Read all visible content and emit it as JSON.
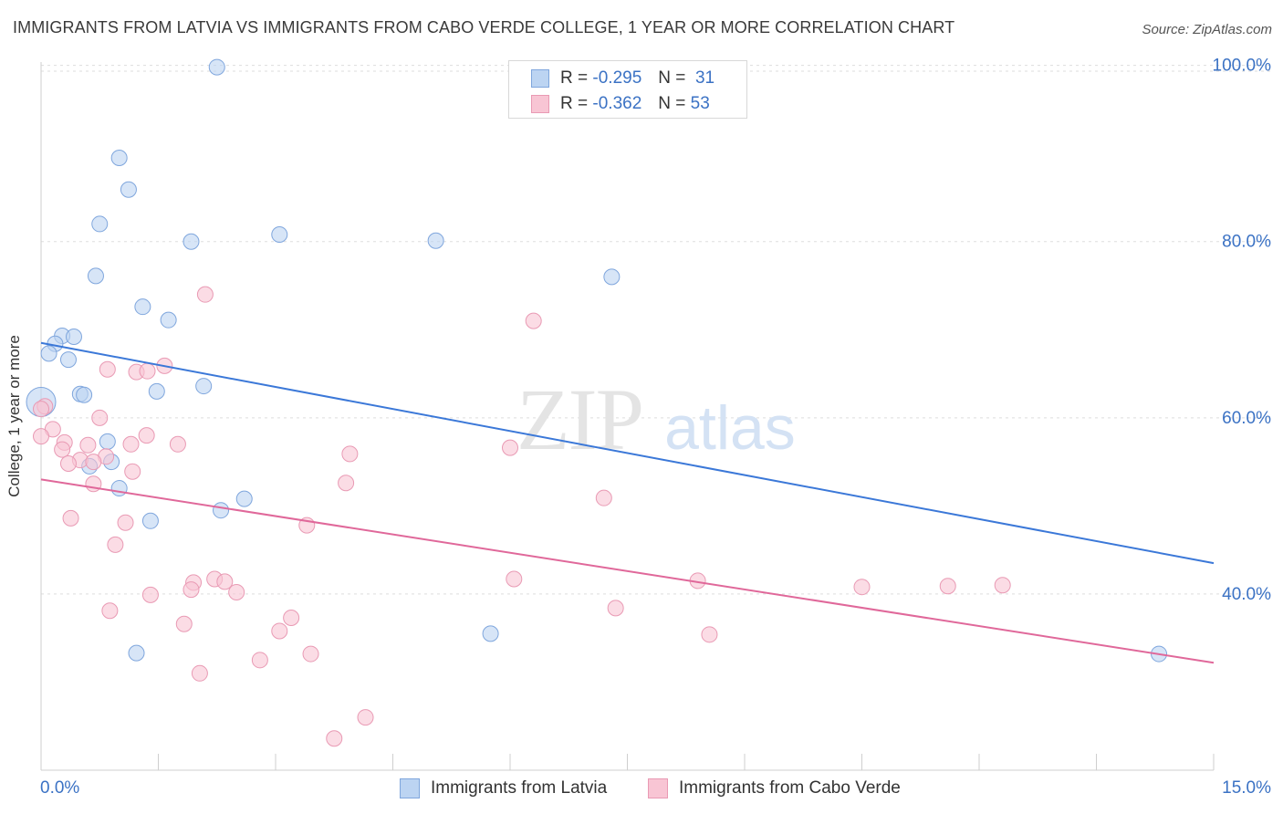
{
  "header": {
    "title": "IMMIGRANTS FROM LATVIA VS IMMIGRANTS FROM CABO VERDE COLLEGE, 1 YEAR OR MORE CORRELATION CHART",
    "source": "Source: ZipAtlas.com"
  },
  "legend_box": {
    "latvia": {
      "r_label": "R =",
      "r_value": "-0.295",
      "n_label": "N =",
      "n_value": "31"
    },
    "caboverde": {
      "r_label": "R =",
      "r_value": "-0.362",
      "n_label": "N =",
      "n_value": "53"
    }
  },
  "colors": {
    "latvia_fill": "#bcd4f2",
    "latvia_stroke": "#7fa6dd",
    "latvia_line": "#3b78d8",
    "caboverde_fill": "#f8c5d4",
    "caboverde_stroke": "#e99ab4",
    "caboverde_line": "#e0689a",
    "tick_label": "#3b72c4",
    "grid": "#dddddd"
  },
  "chart_data": {
    "type": "scatter",
    "title": "IMMIGRANTS FROM LATVIA VS IMMIGRANTS FROM CABO VERDE COLLEGE, 1 YEAR OR MORE CORRELATION CHART",
    "xlabel": "",
    "ylabel": "College, 1 year or more",
    "xlim": [
      0,
      15
    ],
    "ylim": [
      20,
      101
    ],
    "x_tick_labels": [
      "0.0%",
      "15.0%"
    ],
    "y_ticks": [
      40,
      60,
      80,
      100
    ],
    "y_tick_labels": [
      "40.0%",
      "60.0%",
      "80.0%",
      "100.0%"
    ],
    "grid": true,
    "legend_position": "bottom-center",
    "watermark": "ZIPatlas",
    "series": [
      {
        "name": "Immigrants from Latvia",
        "color": "#bcd4f2",
        "points": [
          [
            2.25,
            99.8
          ],
          [
            1.0,
            89.5
          ],
          [
            1.12,
            85.9
          ],
          [
            0.75,
            82.0
          ],
          [
            1.92,
            80.0
          ],
          [
            3.05,
            80.8
          ],
          [
            5.05,
            80.1
          ],
          [
            0.7,
            76.1
          ],
          [
            7.3,
            76.0
          ],
          [
            1.3,
            72.6
          ],
          [
            1.63,
            71.1
          ],
          [
            0.27,
            69.3
          ],
          [
            0.42,
            69.2
          ],
          [
            0.18,
            68.4
          ],
          [
            0.1,
            67.3
          ],
          [
            0.35,
            66.6
          ],
          [
            0.0,
            61.8
          ],
          [
            0.5,
            62.7
          ],
          [
            0.55,
            62.6
          ],
          [
            1.48,
            63.0
          ],
          [
            2.08,
            63.6
          ],
          [
            0.85,
            57.3
          ],
          [
            0.62,
            54.5
          ],
          [
            0.9,
            55.0
          ],
          [
            1.0,
            52.0
          ],
          [
            2.6,
            50.8
          ],
          [
            2.3,
            49.5
          ],
          [
            1.4,
            48.3
          ],
          [
            5.75,
            35.5
          ],
          [
            1.22,
            33.3
          ],
          [
            14.3,
            33.2
          ]
        ]
      },
      {
        "name": "Immigrants from Cabo Verde",
        "color": "#f8c5d4",
        "points": [
          [
            2.1,
            74.0
          ],
          [
            6.3,
            71.0
          ],
          [
            1.58,
            65.9
          ],
          [
            0.85,
            65.5
          ],
          [
            1.22,
            65.2
          ],
          [
            1.36,
            65.3
          ],
          [
            0.05,
            61.3
          ],
          [
            0.75,
            60.0
          ],
          [
            0.15,
            58.7
          ],
          [
            0.0,
            57.9
          ],
          [
            0.3,
            57.2
          ],
          [
            0.6,
            56.9
          ],
          [
            0.83,
            55.6
          ],
          [
            1.15,
            57.0
          ],
          [
            1.35,
            58.0
          ],
          [
            1.75,
            57.0
          ],
          [
            0.27,
            56.4
          ],
          [
            0.5,
            55.2
          ],
          [
            0.67,
            55.0
          ],
          [
            0.35,
            54.8
          ],
          [
            1.17,
            53.9
          ],
          [
            3.95,
            55.9
          ],
          [
            6.0,
            56.6
          ],
          [
            0.67,
            52.5
          ],
          [
            3.9,
            52.6
          ],
          [
            7.2,
            50.9
          ],
          [
            0.38,
            48.6
          ],
          [
            1.08,
            48.1
          ],
          [
            3.4,
            47.8
          ],
          [
            0.95,
            45.6
          ],
          [
            2.22,
            41.7
          ],
          [
            1.95,
            41.3
          ],
          [
            2.35,
            41.4
          ],
          [
            6.05,
            41.7
          ],
          [
            8.4,
            41.5
          ],
          [
            1.92,
            40.5
          ],
          [
            2.5,
            40.2
          ],
          [
            1.4,
            39.9
          ],
          [
            10.5,
            40.8
          ],
          [
            11.6,
            40.9
          ],
          [
            12.3,
            41.0
          ],
          [
            0.88,
            38.1
          ],
          [
            7.35,
            38.4
          ],
          [
            3.2,
            37.3
          ],
          [
            1.83,
            36.6
          ],
          [
            3.05,
            35.8
          ],
          [
            8.55,
            35.4
          ],
          [
            3.45,
            33.2
          ],
          [
            2.8,
            32.5
          ],
          [
            2.03,
            31.0
          ],
          [
            4.15,
            26.0
          ],
          [
            3.75,
            23.6
          ],
          [
            0.0,
            61.0
          ]
        ]
      }
    ],
    "trend_lines": [
      {
        "series": "Immigrants from Latvia",
        "x": [
          0,
          15
        ],
        "y": [
          68.5,
          43.5
        ]
      },
      {
        "series": "Immigrants from Cabo Verde",
        "x": [
          0,
          15
        ],
        "y": [
          53.0,
          32.2
        ]
      }
    ]
  }
}
